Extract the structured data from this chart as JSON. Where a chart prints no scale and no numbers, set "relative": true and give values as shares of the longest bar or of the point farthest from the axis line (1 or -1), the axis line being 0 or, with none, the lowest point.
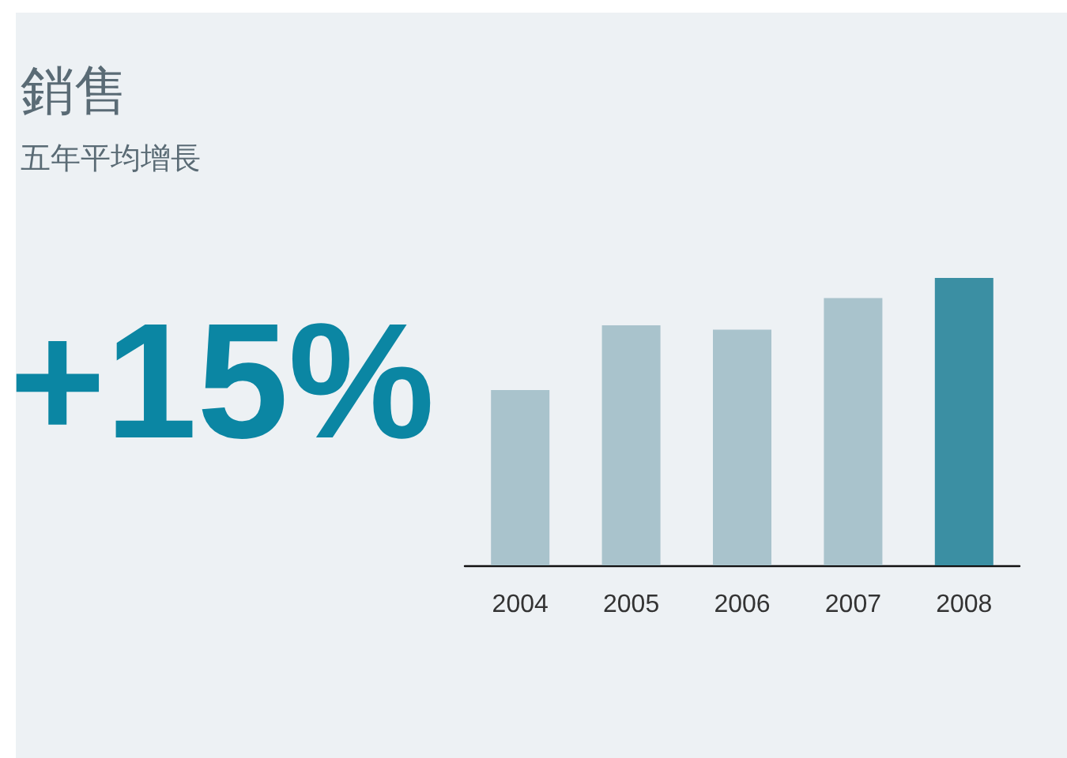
{
  "chart_data": {
    "type": "bar",
    "title": "銷售",
    "subtitle": "五年平均增長",
    "annotations": [
      "+15%"
    ],
    "relative": true,
    "categories": [
      "2004",
      "2005",
      "2006",
      "2007",
      "2008"
    ],
    "values": [
      0.61,
      0.835,
      0.82,
      0.93,
      1
    ],
    "colors": [
      "#a9c3cc",
      "#a9c3cc",
      "#a9c3cc",
      "#a9c3cc",
      "#3b8fa3"
    ]
  }
}
